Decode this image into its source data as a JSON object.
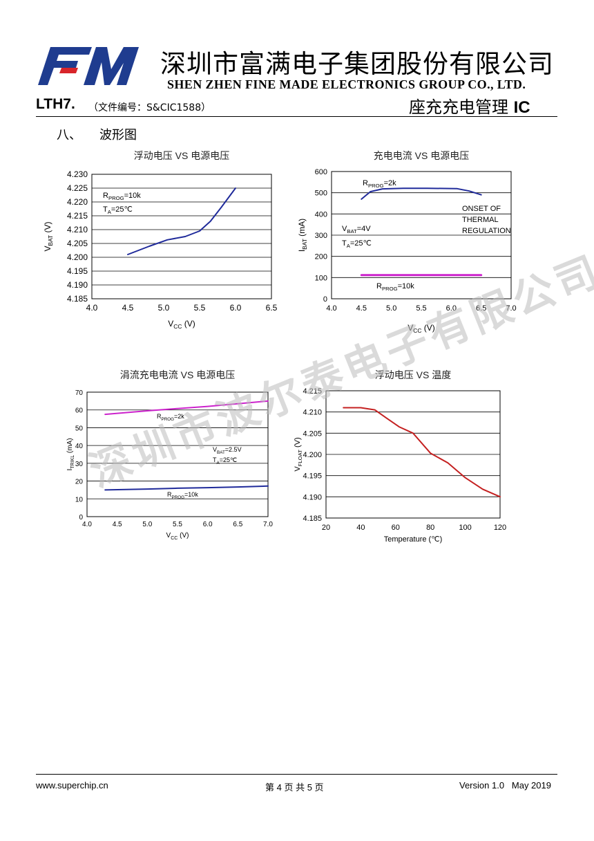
{
  "header": {
    "company_cn": "深圳市富满电子集团股份有限公司",
    "company_en": "SHEN ZHEN FINE MADE ELECTRONICS GROUP CO., LTD.",
    "logo_text": "FM",
    "model": "LTH7.",
    "doc_no": "（文件编号：S&CIC1588）",
    "product_title_cn": "座充充电管理 ",
    "product_title_ic": "IC"
  },
  "section": {
    "number": "八、",
    "title": "波形图"
  },
  "watermark": "深圳市波尔泰电子有限公司",
  "colors": {
    "line_blue": "#1f2a9a",
    "line_magenta": "#cc22cc",
    "line_red": "#c42020",
    "logo_blue": "#1f3c8f",
    "logo_red": "#d8242a"
  },
  "chart_data": [
    {
      "type": "line",
      "title": "浮动电压 VS 电源电压",
      "xlabel": "V_CC (V)",
      "ylabel": "V_BAT (V)",
      "xlim": [
        4.0,
        6.5
      ],
      "ylim": [
        4.185,
        4.23
      ],
      "xticks": [
        "4.0",
        "4.5",
        "5.0",
        "5.5",
        "6.0",
        "6.5"
      ],
      "yticks": [
        "4.185",
        "4.190",
        "4.195",
        "4.200",
        "4.205",
        "4.210",
        "4.215",
        "4.220",
        "4.225",
        "4.230"
      ],
      "annotations": [
        "R_PROG=10k",
        "T_A=25℃"
      ],
      "series": [
        {
          "name": "R_PROG=10k",
          "color": "#1f2a9a",
          "x": [
            4.5,
            4.8,
            5.05,
            5.3,
            5.5,
            5.65,
            5.8,
            6.0
          ],
          "y": [
            4.201,
            4.204,
            4.2063,
            4.2075,
            4.2095,
            4.213,
            4.218,
            4.225
          ]
        }
      ]
    },
    {
      "type": "line",
      "title": "充电电流 VS  电源电压",
      "xlabel": "V_CC (V)",
      "ylabel": "I_BAT (mA)",
      "xlim": [
        4.0,
        7.0
      ],
      "ylim": [
        0,
        600
      ],
      "xticks": [
        "4.0",
        "4.5",
        "5.0",
        "5.5",
        "6.0",
        "6.5",
        "7.0"
      ],
      "yticks": [
        "0",
        "100",
        "200",
        "300",
        "400",
        "500",
        "600"
      ],
      "annotations": [
        "R_PROG=2k",
        "ONSET OF",
        "THERMAL",
        "REGULATION",
        "V_BAT=4V",
        "T_A=25℃",
        "R_PROG=10k"
      ],
      "series": [
        {
          "name": "R_PROG=2k",
          "color": "#1f2a9a",
          "x": [
            4.5,
            4.65,
            4.85,
            5.2,
            5.6,
            6.1,
            6.3,
            6.5
          ],
          "y": [
            470,
            505,
            518,
            521,
            521,
            519,
            508,
            490
          ]
        },
        {
          "name": "R_PROG=10k",
          "color": "#cc22cc",
          "x": [
            4.5,
            6.5
          ],
          "y": [
            112,
            112
          ]
        }
      ]
    },
    {
      "type": "line",
      "title": "涓流充电电流 VS 电源电压",
      "xlabel": "V_CC (V)",
      "ylabel": "I_TRIKL (mA)",
      "xlim": [
        4.0,
        7.0
      ],
      "ylim": [
        0,
        70
      ],
      "xticks": [
        "4.0",
        "4.5",
        "5.0",
        "5.5",
        "6.0",
        "6.5",
        "7.0"
      ],
      "yticks": [
        "0",
        "10",
        "20",
        "30",
        "40",
        "50",
        "60",
        "70"
      ],
      "annotations": [
        "R_PROG=2k",
        "V_BAT=2.5V",
        "T_A=25℃",
        "R_PROG=10k"
      ],
      "series": [
        {
          "name": "R_PROG=2k",
          "color": "#cc22cc",
          "x": [
            4.3,
            5.0,
            5.5,
            6.0,
            6.5,
            7.0
          ],
          "y": [
            57.5,
            59.5,
            60.8,
            62,
            63.5,
            65
          ]
        },
        {
          "name": "R_PROG=10k",
          "color": "#1f2a9a",
          "x": [
            4.3,
            5.0,
            5.5,
            6.0,
            6.5,
            7.0
          ],
          "y": [
            15,
            15.5,
            16,
            16.3,
            16.7,
            17.2
          ]
        }
      ]
    },
    {
      "type": "line",
      "title": "浮动电压  VS  温度",
      "xlabel": "Temperature (℃)",
      "ylabel": "V_FLOAT (V)",
      "xlim": [
        20,
        120
      ],
      "ylim": [
        4.185,
        4.215
      ],
      "xticks": [
        "20",
        "40",
        "60",
        "80",
        "100",
        "120"
      ],
      "yticks": [
        "4.185",
        "4.190",
        "4.195",
        "4.200",
        "4.205",
        "4.210",
        "4.215"
      ],
      "annotations": [],
      "series": [
        {
          "name": "V_FLOAT",
          "color": "#c42020",
          "x": [
            30,
            40,
            48,
            55,
            62,
            70,
            80,
            90,
            100,
            110,
            120
          ],
          "y": [
            4.211,
            4.211,
            4.2105,
            4.2085,
            4.2065,
            4.205,
            4.2003,
            4.198,
            4.1945,
            4.1918,
            4.19
          ]
        }
      ]
    }
  ],
  "footer": {
    "website": "www.superchip.cn",
    "page_prefix": "第 ",
    "page_current": "4",
    "page_mid": " 页 共 ",
    "page_total": "5",
    "page_suffix": " 页",
    "version": "Version 1.0",
    "date": "May 2019"
  }
}
